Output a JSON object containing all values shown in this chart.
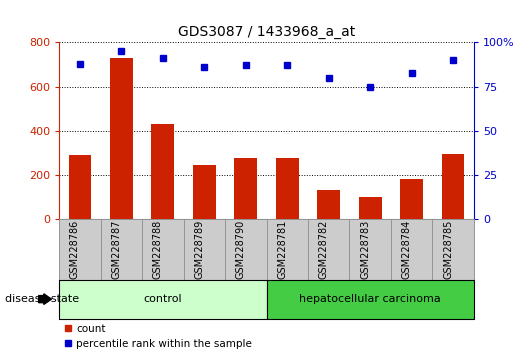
{
  "title": "GDS3087 / 1433968_a_at",
  "samples": [
    "GSM228786",
    "GSM228787",
    "GSM228788",
    "GSM228789",
    "GSM228790",
    "GSM228781",
    "GSM228782",
    "GSM228783",
    "GSM228784",
    "GSM228785"
  ],
  "counts": [
    290,
    730,
    430,
    245,
    280,
    280,
    135,
    100,
    185,
    295
  ],
  "percentiles": [
    88,
    95,
    91,
    86,
    87,
    87,
    80,
    75,
    83,
    90
  ],
  "bar_color": "#cc2200",
  "dot_color": "#0000cc",
  "ylim_left": [
    0,
    800
  ],
  "ylim_right": [
    0,
    100
  ],
  "yticks_left": [
    0,
    200,
    400,
    600,
    800
  ],
  "yticks_right": [
    0,
    25,
    50,
    75,
    100
  ],
  "group_labels": [
    "control",
    "hepatocellular carcinoma"
  ],
  "group_sizes": [
    5,
    5
  ],
  "disease_state_label": "disease state",
  "legend_count_label": "count",
  "legend_percentile_label": "percentile rank within the sample",
  "plot_bg": "#ffffff",
  "tick_area_color": "#cccccc",
  "tick_border_color": "#888888",
  "group_band_light": "#ccffcc",
  "group_band_dark": "#44cc44",
  "group_band_border": "#000000"
}
